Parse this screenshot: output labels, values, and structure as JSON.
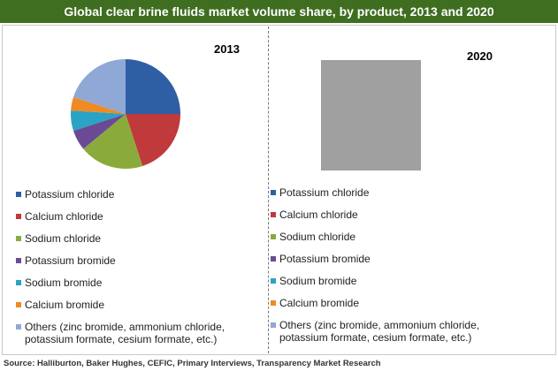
{
  "title": "Global clear brine fluids market volume share, by product, 2013 and 2020",
  "source": "Source: Halliburton, Baker Hughes, CEFIC, Primary Interviews, Transparency Market Research",
  "chart_data": [
    {
      "type": "pie",
      "title": "2013",
      "categories": [
        "Potassium chloride",
        "Calcium chloride",
        "Sodium chloride",
        "Potassium bromide",
        "Sodium bromide",
        "Calcium bromide",
        "Others (zinc bromide, ammonium chloride, potassium formate, cesium formate, etc.)"
      ],
      "values": [
        25,
        20,
        19,
        6,
        6,
        4,
        20
      ],
      "colors": [
        "#2e5fa4",
        "#c0393b",
        "#8aab3c",
        "#6a4a94",
        "#2aa3c4",
        "#f08a24",
        "#8fa8d6"
      ]
    },
    {
      "type": "pie-obscured",
      "title": "2020",
      "categories": [
        "Potassium chloride",
        "Calcium chloride",
        "Sodium chloride",
        "Potassium bromide",
        "Sodium bromide",
        "Calcium bromide",
        "Others (zinc bromide, ammonium chloride, potassium formate, cesium formate, etc.)"
      ],
      "colors": [
        "#2e5fa4",
        "#c0393b",
        "#8aab3c",
        "#6a4a94",
        "#2aa3c4",
        "#f08a24",
        "#8fa8d6"
      ]
    }
  ]
}
